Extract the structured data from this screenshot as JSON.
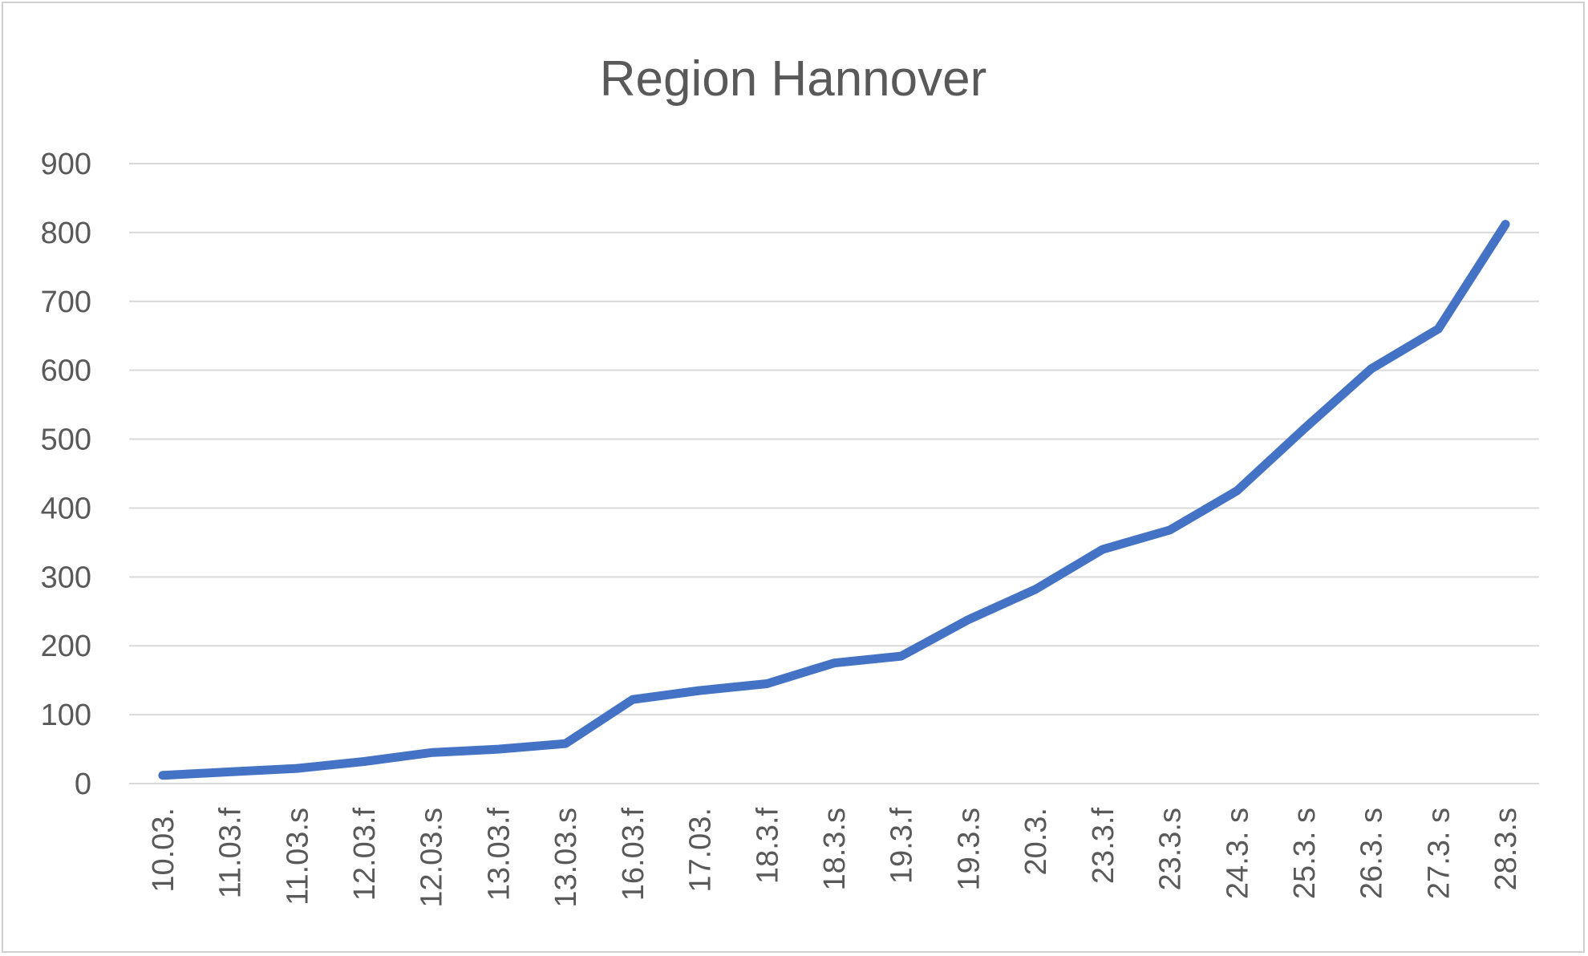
{
  "chart_data": {
    "type": "line",
    "title": "Region Hannover",
    "xlabel": "",
    "ylabel": "",
    "ylim": [
      0,
      900
    ],
    "yticks": [
      "0",
      "100",
      "200",
      "300",
      "400",
      "500",
      "600",
      "700",
      "800",
      "900"
    ],
    "grid": true,
    "legend": "none",
    "categories": [
      "10.03.",
      "11.03.f",
      "11.03.s",
      "12.03.f",
      "12.03.s",
      "13.03.f",
      "13.03.s",
      "16.03.f",
      "17.03.",
      "18.3.f",
      "18.3.s",
      "19.3.f",
      "19.3.s",
      "20.3.",
      "23.3.f",
      "23.3.s",
      "24.3. s",
      "25.3. s",
      "26.3. s",
      "27.3. s",
      "28.3.s"
    ],
    "series": [
      {
        "color": "#4472c4",
        "values": [
          12,
          17,
          22,
          32,
          45,
          50,
          58,
          122,
          135,
          145,
          175,
          185,
          238,
          282,
          340,
          368,
          425,
          515,
          602,
          660,
          812
        ]
      }
    ]
  }
}
